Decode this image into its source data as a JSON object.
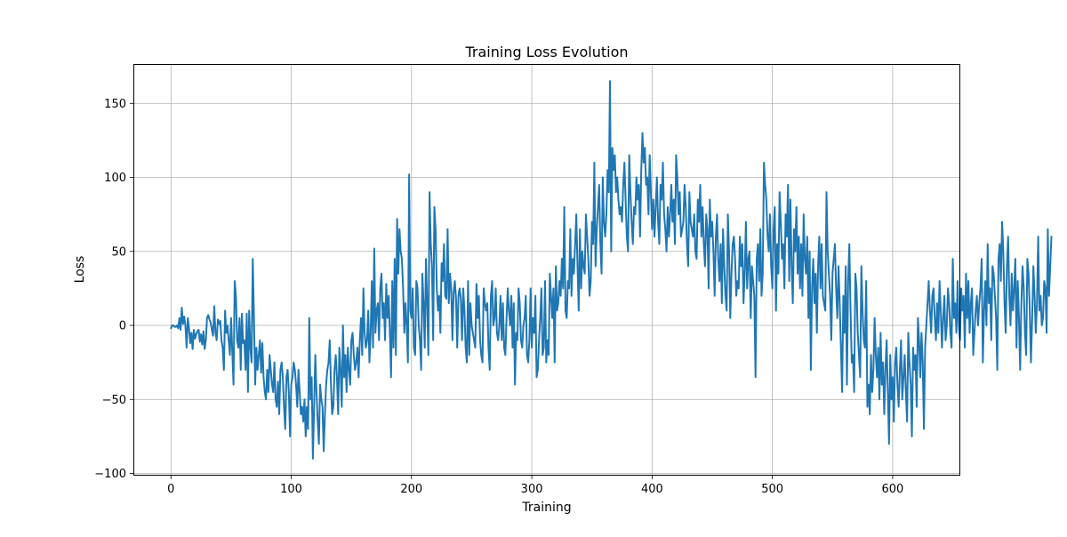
{
  "chart_data": {
    "type": "line",
    "title": "Training Loss Evolution",
    "xlabel": "Training",
    "ylabel": "Loss",
    "xlim": [
      -31.25,
      656.25
    ],
    "ylim": [
      -101.5,
      176.6
    ],
    "x_ticks": [
      0,
      100,
      200,
      300,
      400,
      500,
      600
    ],
    "y_ticks": [
      -100,
      -50,
      0,
      50,
      100,
      150
    ],
    "grid": true,
    "legend": "none",
    "series": [
      {
        "color": "#1f77b4",
        "x_start": 0,
        "x_step": 1,
        "values": [
          -2,
          0,
          0,
          -1,
          -1,
          0,
          -2,
          5,
          -3,
          12,
          1,
          6,
          0,
          -15,
          5,
          -2,
          -12,
          -5,
          -16,
          -3,
          -9,
          -6,
          -4,
          -3,
          -11,
          -6,
          -13,
          -4,
          -16,
          -10,
          5,
          7,
          4,
          2,
          -3,
          -7,
          13,
          -5,
          -10,
          4,
          1,
          3,
          -10,
          -15,
          -30,
          10,
          -5,
          0,
          -10,
          -20,
          5,
          -18,
          -40,
          30,
          20,
          -10,
          -15,
          5,
          -30,
          8,
          -12,
          -10,
          -30,
          8,
          -45,
          10,
          -15,
          -25,
          45,
          5,
          -40,
          -15,
          -30,
          -20,
          -10,
          -32,
          -12,
          -35,
          -45,
          -50,
          -30,
          -45,
          -20,
          -30,
          -40,
          -45,
          -25,
          -50,
          -55,
          -38,
          -60,
          -30,
          -25,
          -35,
          -55,
          -70,
          -35,
          -30,
          -45,
          -75,
          -40,
          -35,
          -25,
          -30,
          -40,
          -55,
          -30,
          -45,
          -60,
          -55,
          -65,
          -50,
          -75,
          -55,
          -70,
          5,
          -50,
          -35,
          -90,
          -55,
          -20,
          -45,
          -65,
          -80,
          -40,
          -50,
          -55,
          -85,
          -60,
          -40,
          -30,
          -25,
          -10,
          -40,
          -60,
          -55,
          -30,
          -20,
          -35,
          -60,
          -15,
          -30,
          -55,
          0,
          -35,
          -20,
          -45,
          -15,
          -30,
          -40,
          -10,
          -5,
          -20,
          -30,
          -25,
          -15,
          -35,
          -10,
          5,
          -20,
          25,
          -5,
          -15,
          -10,
          10,
          -25,
          -5,
          30,
          -15,
          52,
          -5,
          10,
          15,
          -10,
          25,
          35,
          5,
          15,
          -10,
          28,
          5,
          20,
          -5,
          -35,
          30,
          -15,
          45,
          -20,
          72,
          35,
          65,
          50,
          45,
          25,
          -5,
          15,
          0,
          -25,
          102,
          10,
          5,
          25,
          -15,
          -20,
          30,
          25,
          0,
          -10,
          -30,
          35,
          15,
          -15,
          45,
          15,
          -20,
          90,
          55,
          40,
          -10,
          80,
          65,
          25,
          10,
          20,
          -5,
          42,
          30,
          55,
          20,
          18,
          65,
          15,
          35,
          25,
          -10,
          22,
          30,
          18,
          -15,
          20,
          25,
          18,
          -10,
          25,
          10,
          -15,
          -25,
          30,
          -20,
          15,
          0,
          -5,
          -10,
          -15,
          28,
          5,
          20,
          -10,
          -20,
          -25,
          25,
          15,
          10,
          15,
          -15,
          -30,
          20,
          30,
          0,
          5,
          25,
          -5,
          -10,
          0,
          20,
          -10,
          15,
          -15,
          -20,
          5,
          25,
          10,
          0,
          20,
          -15,
          15,
          -40,
          -5,
          -10,
          25,
          15,
          -10,
          -15,
          0,
          5,
          20,
          -20,
          -25,
          -10,
          25,
          -15,
          5,
          -5,
          20,
          -35,
          -30,
          -10,
          5,
          25,
          -20,
          -15,
          30,
          -25,
          -10,
          -20,
          35,
          20,
          5,
          25,
          -25,
          40,
          10,
          15,
          30,
          20,
          45,
          25,
          80,
          10,
          5,
          30,
          25,
          65,
          20,
          45,
          35,
          55,
          75,
          40,
          10,
          65,
          25,
          50,
          40,
          35,
          75,
          60,
          45,
          20,
          30,
          70,
          55,
          110,
          40,
          65,
          80,
          95,
          55,
          35,
          100,
          70,
          60,
          75,
          105,
          90,
          165,
          50,
          120,
          105,
          115,
          90,
          100,
          85,
          75,
          80,
          70,
          95,
          110,
          85,
          60,
          50,
          115,
          90,
          70,
          55,
          80,
          75,
          100,
          85,
          95,
          60,
          105,
          130,
          110,
          120,
          95,
          100,
          75,
          115,
          90,
          65,
          85,
          60,
          80,
          100,
          70,
          55,
          95,
          85,
          110,
          75,
          65,
          50,
          80,
          60,
          75,
          95,
          70,
          85,
          55,
          115,
          100,
          75,
          90,
          60,
          65,
          70,
          95,
          80,
          55,
          40,
          90,
          70,
          65,
          60,
          75,
          50,
          45,
          85,
          70,
          95,
          60,
          80,
          55,
          40,
          75,
          65,
          25,
          85,
          60,
          70,
          50,
          20,
          60,
          75,
          45,
          30,
          55,
          15,
          65,
          40,
          20,
          10,
          75,
          50,
          5,
          35,
          55,
          60,
          45,
          20,
          30,
          25,
          60,
          40,
          55,
          15,
          35,
          70,
          25,
          45,
          50,
          5,
          40,
          30,
          20,
          -35,
          45,
          55,
          30,
          65,
          20,
          35,
          110,
          95,
          85,
          60,
          50,
          75,
          40,
          25,
          65,
          80,
          10,
          55,
          35,
          90,
          70,
          45,
          55,
          25,
          75,
          60,
          95,
          30,
          85,
          40,
          15,
          65,
          50,
          80,
          35,
          60,
          25,
          55,
          20,
          75,
          45,
          35,
          60,
          5,
          50,
          -30,
          25,
          45,
          15,
          35,
          -5,
          40,
          60,
          25,
          55,
          20,
          15,
          10,
          90,
          50,
          35,
          20,
          -10,
          35,
          45,
          55,
          25,
          5,
          40,
          15,
          -15,
          -45,
          20,
          -5,
          40,
          -40,
          30,
          55,
          10,
          -25,
          -20,
          -45,
          35,
          25,
          -5,
          -20,
          -35,
          40,
          10,
          -10,
          -15,
          30,
          -55,
          -40,
          -60,
          -20,
          -45,
          -30,
          5,
          -20,
          -35,
          -15,
          -50,
          -5,
          -40,
          -25,
          -60,
          -30,
          -10,
          -45,
          -80,
          -20,
          -50,
          -35,
          -65,
          -25,
          -15,
          -40,
          -55,
          -30,
          -10,
          -50,
          -35,
          -20,
          -45,
          -65,
          -5,
          -25,
          -40,
          -75,
          -15,
          -30,
          -20,
          -55,
          5,
          -10,
          -35,
          -5,
          -25,
          -70,
          -15,
          0,
          15,
          30,
          10,
          -5,
          20,
          25,
          5,
          -10,
          15,
          -5,
          30,
          10,
          -15,
          5,
          20,
          -10,
          0,
          25,
          15,
          -5,
          -15,
          45,
          5,
          15,
          -5,
          30,
          0,
          -10,
          25,
          10,
          20,
          -15,
          35,
          5,
          30,
          -5,
          15,
          25,
          -20,
          -5,
          10,
          20,
          0,
          15,
          25,
          45,
          -25,
          10,
          30,
          0,
          55,
          15,
          25,
          -10,
          40,
          35,
          20,
          5,
          -30,
          45,
          55,
          30,
          70,
          50,
          15,
          -5,
          40,
          60,
          20,
          0,
          35,
          10,
          25,
          45,
          -15,
          30,
          5,
          -30,
          15,
          40,
          25,
          -5,
          -20,
          45,
          35,
          10,
          -25,
          5,
          40,
          20,
          -5,
          15,
          60,
          10,
          20,
          0,
          5,
          30,
          25,
          -5,
          65,
          20,
          40,
          60
        ]
      }
    ]
  }
}
